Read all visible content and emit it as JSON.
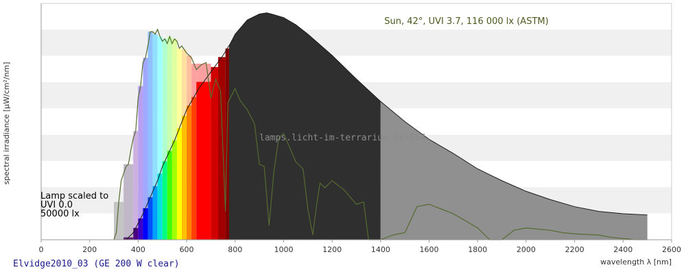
{
  "caption": "Elvidge2010_03 (GE 200 W clear)",
  "watermark": "lamps.licht-im-terrarium.de>564",
  "chart_data": {
    "type": "area",
    "xlabel": "wavelength λ [nm]",
    "ylabel": "spectral irradiance [µW/cm²/nm]",
    "xlim": [
      0,
      2600
    ],
    "xticks": [
      0,
      200,
      400,
      600,
      800,
      1000,
      1200,
      1400,
      1600,
      1800,
      2000,
      2200,
      2400,
      2600
    ],
    "ylim": [
      0,
      10
    ],
    "grid": "horizontal bands",
    "sun_label": "Sun, 42°, UVI 3.7, 116 000 lx (ASTM)",
    "lamp_note": [
      "Lamp scaled to",
      "UVI 0.0",
      "50000 lx"
    ],
    "series": [
      {
        "name": "Sun, 42°, UVI 3.7, 116 000 lx (ASTM)",
        "color": "#556b2f",
        "x": [
          300,
          310,
          320,
          330,
          340,
          350,
          360,
          370,
          380,
          390,
          400,
          410,
          420,
          430,
          440,
          450,
          460,
          470,
          480,
          490,
          500,
          510,
          520,
          530,
          540,
          550,
          560,
          570,
          580,
          600,
          620,
          640,
          660,
          680,
          700,
          720,
          740,
          760,
          770,
          800,
          820,
          850,
          880,
          900,
          920,
          940,
          960,
          980,
          1000,
          1050,
          1080,
          1100,
          1120,
          1135,
          1150,
          1170,
          1200,
          1250,
          1300,
          1330,
          1350,
          1380,
          1400,
          1450,
          1500,
          1550,
          1600,
          1700,
          1750,
          1800,
          1850,
          1900,
          1950,
          2000,
          2050,
          2100,
          2150,
          2200,
          2300,
          2350,
          2400,
          2450,
          2500
        ],
        "y": [
          0.0,
          0.3,
          1.6,
          2.5,
          2.8,
          3.1,
          3.2,
          3.8,
          4.3,
          4.6,
          6.0,
          6.5,
          7.5,
          7.7,
          8.2,
          8.8,
          8.8,
          8.7,
          8.9,
          8.6,
          8.4,
          8.5,
          8.3,
          8.6,
          8.3,
          8.5,
          8.4,
          8.1,
          8.2,
          7.9,
          7.7,
          7.2,
          7.4,
          7.5,
          6.0,
          6.8,
          6.3,
          1.2,
          5.8,
          6.4,
          5.9,
          5.5,
          4.9,
          3.2,
          3.1,
          0.6,
          2.9,
          4.3,
          4.5,
          3.3,
          3.0,
          1.3,
          0.2,
          1.4,
          2.4,
          2.2,
          2.5,
          2.1,
          1.5,
          1.6,
          0.0,
          0.0,
          0.0,
          0.2,
          0.3,
          1.4,
          1.5,
          1.1,
          0.8,
          0.5,
          0.0,
          0.0,
          0.4,
          0.5,
          0.45,
          0.4,
          0.3,
          0.25,
          0.2,
          0.1,
          0.05,
          0.0,
          0.0
        ]
      },
      {
        "name": "Elvidge2010_03 (GE 200 W clear)",
        "color": "#2e2e2e",
        "x": [
          350,
          380,
          400,
          420,
          450,
          480,
          500,
          550,
          600,
          650,
          700,
          750,
          780,
          800,
          850,
          900,
          930,
          950,
          1000,
          1050,
          1100,
          1150,
          1200,
          1250,
          1300,
          1400,
          1500,
          1600,
          1700,
          1800,
          1900,
          2000,
          2100,
          2200,
          2300,
          2400,
          2500
        ],
        "y": [
          0.0,
          0.3,
          0.7,
          1.1,
          1.8,
          2.5,
          3.1,
          4.2,
          5.5,
          6.4,
          7.1,
          7.8,
          8.3,
          8.7,
          9.3,
          9.55,
          9.6,
          9.55,
          9.4,
          9.1,
          8.7,
          8.25,
          7.8,
          7.3,
          6.8,
          5.85,
          5.0,
          4.25,
          3.65,
          3.0,
          2.5,
          2.05,
          1.7,
          1.4,
          1.2,
          1.1,
          1.05
        ]
      }
    ]
  }
}
